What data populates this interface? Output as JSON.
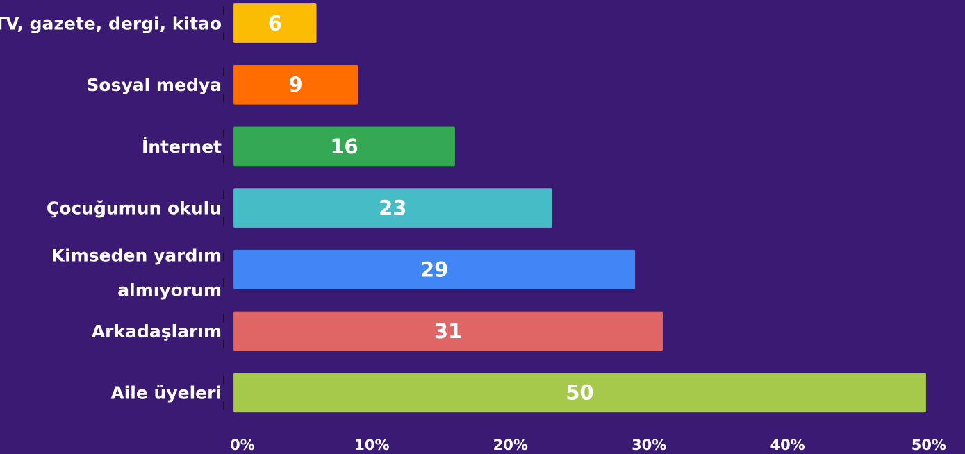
{
  "chart_data": {
    "type": "bar",
    "orientation": "horizontal",
    "title": "",
    "xlabel": "",
    "ylabel": "",
    "xlim": [
      0,
      50
    ],
    "x_ticks": [
      "0%",
      "10%",
      "20%",
      "30%",
      "40%",
      "50%"
    ],
    "grid": false,
    "background_color": "#3a1a72",
    "categories": [
      [
        "TV, gazete, dergi, kitao"
      ],
      [
        "Sosyal medya"
      ],
      [
        "İnternet"
      ],
      [
        "Çocuğumun okulu"
      ],
      [
        "Kimseden yardım",
        "almıyorum"
      ],
      [
        "Arkadaşlarım"
      ],
      [
        "Aile üyeleri"
      ]
    ],
    "values": [
      6,
      9,
      16,
      23,
      29,
      31,
      50
    ],
    "value_labels": [
      "6",
      "9",
      "16",
      "23",
      "29",
      "31",
      "50"
    ],
    "colors": [
      "#fbbc04",
      "#ff6d01",
      "#34a853",
      "#46bdc6",
      "#4285f4",
      "#e06666",
      "#a6c94b"
    ]
  }
}
